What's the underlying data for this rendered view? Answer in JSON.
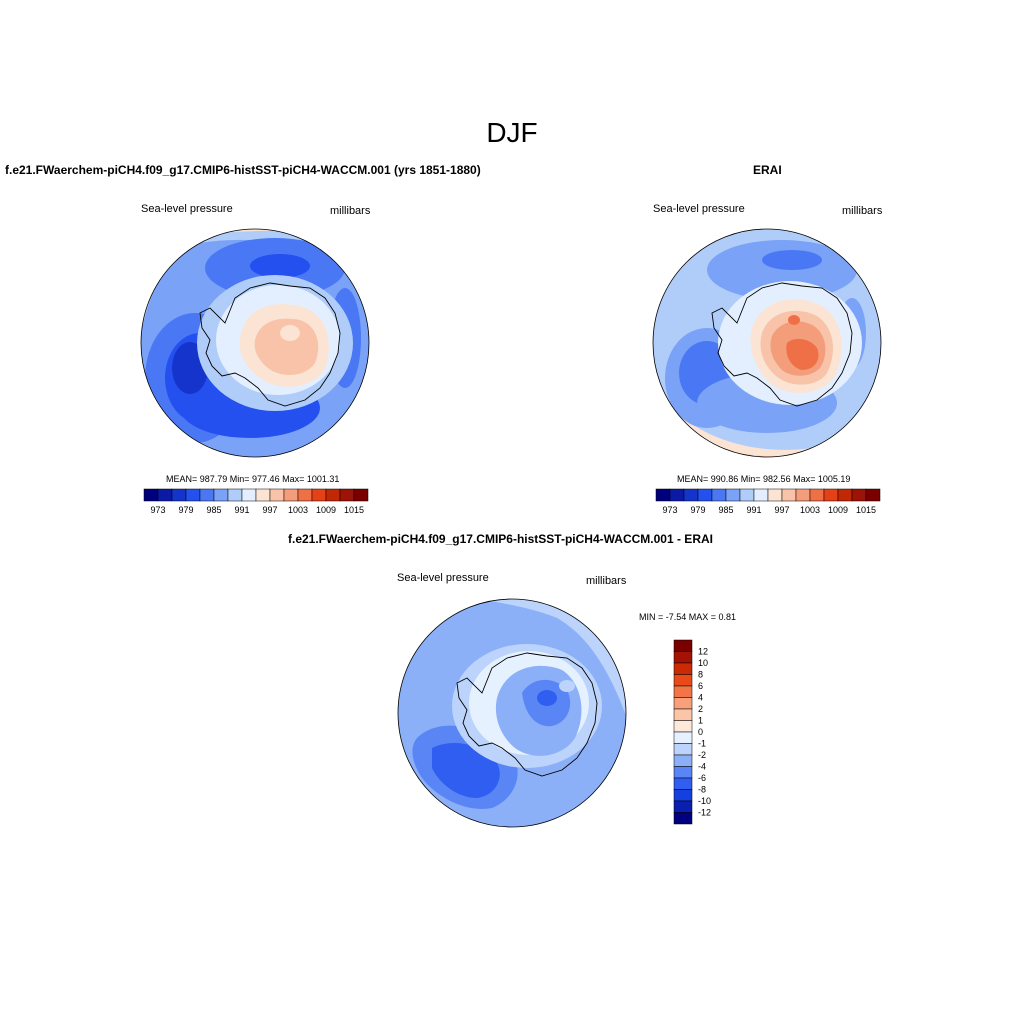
{
  "figure": {
    "season_title": "DJF"
  },
  "colors": {
    "model_scale": [
      "#00007f",
      "#0a1aa6",
      "#1534cc",
      "#2450f0",
      "#4a78f5",
      "#7aa2f7",
      "#b0ccf9",
      "#e3efff",
      "#fbe4d3",
      "#f8c3a9",
      "#f39d7b",
      "#ef6f46",
      "#e44216",
      "#c22806",
      "#9c1406",
      "#7a0000"
    ],
    "diff_scale": [
      "#000080",
      "#0a1fb0",
      "#1540e0",
      "#2f5ef0",
      "#5a86f5",
      "#8bb0f8",
      "#bcd3fb",
      "#e6f1ff",
      "#fde8da",
      "#fbc6a8",
      "#f7a07a",
      "#f27447",
      "#e94a17",
      "#cc2a05",
      "#a31205",
      "#7a0000"
    ]
  },
  "chart_data": [
    {
      "type": "heatmap",
      "panel": "model",
      "title": "f.e21.FWaerchem-piCH4.f09_g17.CMIP6-histSST-piCH4-WACCM.001 (yrs 1851-1880)",
      "left_label": "Sea-level pressure",
      "right_label": "millibars",
      "stats_text": "MEAN= 987.79  Min= 977.46  Max= 1001.31",
      "stats": {
        "mean": 987.79,
        "min": 977.46,
        "max": 1001.31
      },
      "colorbar_ticks": [
        "973",
        "979",
        "985",
        "991",
        "997",
        "1003",
        "1009",
        "1015"
      ]
    },
    {
      "type": "heatmap",
      "panel": "obs",
      "title": "ERAI",
      "left_label": "Sea-level pressure",
      "right_label": "millibars",
      "stats_text": "MEAN= 990.86  Min= 982.56  Max= 1005.19",
      "stats": {
        "mean": 990.86,
        "min": 982.56,
        "max": 1005.19
      },
      "colorbar_ticks": [
        "973",
        "979",
        "985",
        "991",
        "997",
        "1003",
        "1009",
        "1015"
      ]
    },
    {
      "type": "heatmap",
      "panel": "diff",
      "title": "f.e21.FWaerchem-piCH4.f09_g17.CMIP6-histSST-piCH4-WACCM.001 - ERAI",
      "left_label": "Sea-level pressure",
      "right_label": "millibars",
      "stats_text": "MIN =  -7.54 MAX =   0.81",
      "stats": {
        "min": -7.54,
        "max": 0.81
      },
      "colorbar_ticks": [
        "12",
        "10",
        "8",
        "6",
        "4",
        "2",
        "1",
        "0",
        "-1",
        "-2",
        "-4",
        "-6",
        "-8",
        "-10",
        "-12"
      ]
    }
  ]
}
